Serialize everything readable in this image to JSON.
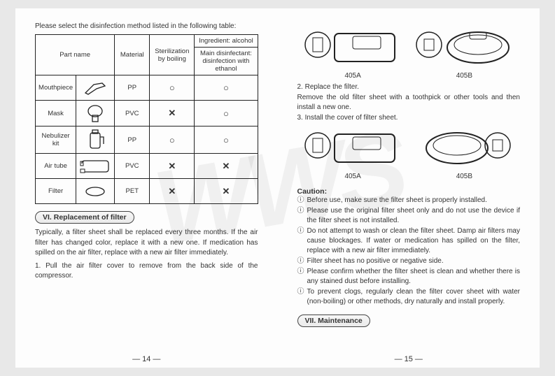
{
  "left": {
    "intro": "Please select the disinfection method listed in the following table:",
    "headers": {
      "part": "Part name",
      "material": "Material",
      "boiling": "Sterilization by boiling",
      "alcohol_top": "Ingredient: alcohol",
      "alcohol_sub": "Main disinfectant: disinfection with ethanol"
    },
    "rows": [
      {
        "name": "Mouthpiece",
        "material": "PP",
        "boil": "○",
        "alc": "○"
      },
      {
        "name": "Mask",
        "material": "PVC",
        "boil": "✕",
        "alc": "○"
      },
      {
        "name": "Nebulizer kit",
        "material": "PP",
        "boil": "○",
        "alc": "○"
      },
      {
        "name": "Air tube",
        "material": "PVC",
        "boil": "✕",
        "alc": "✕"
      },
      {
        "name": "Filter",
        "material": "PET",
        "boil": "✕",
        "alc": "✕"
      }
    ],
    "section6": "VI. Replacement of filter",
    "para1": "Typically, a filter sheet shall be replaced every three months. If the air filter has changed color, replace it with a new one. If medication has spilled on the air filter, replace with a new air filter immediately.",
    "step1": "1.  Pull the air filter cover to remove from the back side of the compressor.",
    "pagenum": "— 14 —"
  },
  "right": {
    "labelA": "405A",
    "labelB": "405B",
    "step2a": "2. Replace the filter.",
    "step2b": "Remove the old filter sheet with a toothpick or other tools and then install a new one.",
    "step3": "3. Install the cover of filter sheet.",
    "caution_head": "Caution:",
    "cautions": [
      "Before use, make sure the filter sheet is properly installed.",
      "Please use the original filter sheet only and do not use the device if the filter sheet is not installed.",
      "Do not attempt to wash or clean the filter sheet. Damp air filters may cause blockages. If water or medication has spilled on the filter, replace with a new air filter immediately.",
      "Filter sheet has no positive or negative side.",
      "Please confirm whether the filter sheet is clean and whether there is any stained dust before installing.",
      "To prevent clogs, regularly clean the filter cover sheet with water (non-boiling) or other methods, dry naturally and install properly."
    ],
    "section7": "VII. Maintenance",
    "pagenum": "— 15 —"
  },
  "icons": {
    "circle_i": "ⓘ"
  }
}
